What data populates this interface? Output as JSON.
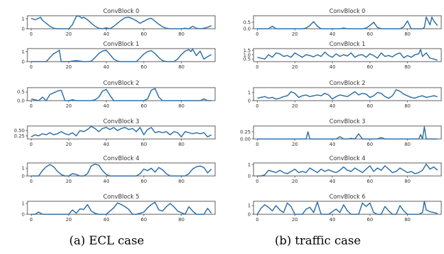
{
  "figure": {
    "caption_a": "(a) ECL case",
    "caption_b": "(b) traffic case"
  },
  "style": {
    "line_color": "#2b6fa8",
    "axis_color": "#333333",
    "text_color": "#333333"
  },
  "chart_data": [
    {
      "type": "line",
      "panel": "ECL",
      "title": "ConvBlock 0",
      "xticks": [
        0,
        20,
        40,
        60,
        80
      ],
      "yticks": [
        0,
        1
      ],
      "ylim": [
        0,
        1.3
      ],
      "xlim": [
        -2,
        98
      ],
      "x": [
        0,
        2,
        4,
        5,
        6,
        8,
        10,
        12,
        14,
        16,
        18,
        20,
        22,
        23,
        24,
        25,
        26,
        27,
        28,
        30,
        32,
        34,
        36,
        38,
        40,
        42,
        44,
        46,
        48,
        50,
        52,
        54,
        56,
        58,
        60,
        62,
        64,
        66,
        68,
        70,
        72,
        74,
        76,
        78,
        80,
        82,
        84,
        86,
        88,
        90,
        92,
        94,
        96
      ],
      "y": [
        1.05,
        0.9,
        1.05,
        1.15,
        0.85,
        0.55,
        0.25,
        0.05,
        0.0,
        0.0,
        0.0,
        0.0,
        0.4,
        0.85,
        1.2,
        1.3,
        1.2,
        1.05,
        1.15,
        0.9,
        0.55,
        0.25,
        0.05,
        0.0,
        0.1,
        0.0,
        0.25,
        0.55,
        0.85,
        1.1,
        1.15,
        1.0,
        0.8,
        0.55,
        0.75,
        0.95,
        1.05,
        0.75,
        0.45,
        0.2,
        0.05,
        0.0,
        0.0,
        0.0,
        0.0,
        0.05,
        0.0,
        0.25,
        0.05,
        0.0,
        0.05,
        0.15,
        0.3
      ]
    },
    {
      "type": "line",
      "panel": "ECL",
      "title": "ConvBlock 1",
      "xticks": [
        0,
        20,
        40,
        60,
        80
      ],
      "yticks": [
        0,
        1
      ],
      "ylim": [
        0,
        1.3
      ],
      "xlim": [
        -2,
        98
      ],
      "x": [
        0,
        2,
        4,
        6,
        8,
        10,
        12,
        14,
        15,
        16,
        18,
        20,
        22,
        24,
        26,
        28,
        30,
        32,
        34,
        36,
        38,
        40,
        42,
        44,
        46,
        48,
        50,
        52,
        54,
        56,
        58,
        60,
        62,
        64,
        66,
        68,
        70,
        72,
        74,
        76,
        78,
        80,
        82,
        84,
        85,
        86,
        88,
        90,
        92,
        94,
        96
      ],
      "y": [
        0.0,
        0.0,
        0.0,
        0.0,
        0.0,
        0.4,
        0.8,
        1.0,
        1.15,
        0.0,
        0.0,
        0.0,
        0.05,
        0.1,
        0.05,
        0.0,
        0.0,
        0.05,
        0.4,
        0.8,
        1.05,
        1.15,
        0.7,
        0.25,
        0.05,
        0.0,
        0.0,
        0.0,
        0.0,
        0.0,
        0.35,
        0.75,
        1.0,
        1.1,
        0.8,
        0.4,
        0.1,
        0.0,
        0.0,
        0.0,
        0.25,
        0.7,
        1.05,
        1.2,
        1.0,
        1.25,
        0.6,
        1.05,
        0.25,
        0.5,
        0.7
      ]
    },
    {
      "type": "line",
      "panel": "ECL",
      "title": "ConvBlock 2",
      "xticks": [
        0,
        20,
        40,
        60,
        80
      ],
      "yticks": [
        0.0,
        0.5
      ],
      "ylim": [
        0,
        0.75
      ],
      "xlim": [
        -2,
        98
      ],
      "x": [
        0,
        2,
        4,
        6,
        8,
        10,
        12,
        14,
        16,
        18,
        20,
        22,
        24,
        26,
        28,
        30,
        32,
        34,
        36,
        38,
        40,
        42,
        44,
        46,
        48,
        50,
        52,
        54,
        56,
        58,
        60,
        62,
        64,
        66,
        68,
        70,
        72,
        74,
        76,
        78,
        80,
        82,
        84,
        86,
        88,
        90,
        92,
        94,
        96
      ],
      "y": [
        0.1,
        0.05,
        0.0,
        0.2,
        0.0,
        0.35,
        0.45,
        0.55,
        0.6,
        0.0,
        0.0,
        0.05,
        0.0,
        0.0,
        0.0,
        0.0,
        0.0,
        0.05,
        0.2,
        0.55,
        0.65,
        0.3,
        0.0,
        0.0,
        0.0,
        0.0,
        0.0,
        0.0,
        0.0,
        0.0,
        0.0,
        0.1,
        0.6,
        0.7,
        0.2,
        0.0,
        0.0,
        0.0,
        0.0,
        0.0,
        0.0,
        0.0,
        0.0,
        0.0,
        0.0,
        0.0,
        0.1,
        0.0,
        0.0
      ]
    },
    {
      "type": "line",
      "panel": "ECL",
      "title": "ConvBlock 3",
      "xticks": [
        0,
        20,
        40,
        60,
        80
      ],
      "yticks": [
        0.25,
        0.5
      ],
      "ylim": [
        0.1,
        0.72
      ],
      "xlim": [
        -2,
        98
      ],
      "x": [
        0,
        2,
        4,
        6,
        8,
        10,
        12,
        14,
        16,
        18,
        20,
        22,
        24,
        26,
        28,
        30,
        32,
        34,
        36,
        38,
        40,
        42,
        44,
        46,
        48,
        50,
        52,
        54,
        56,
        58,
        60,
        62,
        64,
        66,
        68,
        70,
        72,
        74,
        76,
        78,
        80,
        82,
        84,
        86,
        88,
        90,
        92,
        94,
        96
      ],
      "y": [
        0.2,
        0.3,
        0.25,
        0.35,
        0.3,
        0.4,
        0.3,
        0.35,
        0.45,
        0.35,
        0.3,
        0.4,
        0.25,
        0.5,
        0.45,
        0.55,
        0.7,
        0.6,
        0.45,
        0.6,
        0.65,
        0.55,
        0.65,
        0.5,
        0.6,
        0.65,
        0.55,
        0.6,
        0.45,
        0.65,
        0.3,
        0.55,
        0.65,
        0.4,
        0.45,
        0.4,
        0.45,
        0.3,
        0.45,
        0.4,
        0.2,
        0.45,
        0.4,
        0.35,
        0.4,
        0.35,
        0.4,
        0.2,
        0.3
      ]
    },
    {
      "type": "line",
      "panel": "ECL",
      "title": "ConvBlock 4",
      "xticks": [
        0,
        20,
        40,
        60,
        80
      ],
      "yticks": [
        0,
        1
      ],
      "ylim": [
        0,
        1.7
      ],
      "xlim": [
        -2,
        98
      ],
      "x": [
        0,
        2,
        4,
        6,
        8,
        10,
        12,
        14,
        16,
        18,
        20,
        22,
        24,
        26,
        28,
        30,
        32,
        34,
        36,
        38,
        40,
        42,
        44,
        46,
        48,
        50,
        52,
        54,
        56,
        58,
        60,
        62,
        64,
        66,
        68,
        70,
        72,
        74,
        76,
        78,
        80,
        82,
        84,
        86,
        88,
        90,
        92,
        94,
        96
      ],
      "y": [
        0.0,
        0.0,
        0.0,
        0.7,
        1.2,
        1.5,
        1.2,
        0.6,
        0.2,
        0.0,
        0.0,
        0.3,
        0.2,
        0.0,
        0.0,
        0.3,
        1.3,
        1.55,
        1.4,
        0.7,
        0.2,
        0.0,
        0.0,
        0.0,
        0.0,
        0.0,
        0.0,
        0.0,
        0.0,
        0.3,
        0.9,
        0.7,
        1.0,
        0.5,
        1.1,
        0.8,
        0.3,
        0.0,
        0.0,
        0.0,
        0.0,
        0.0,
        0.3,
        0.9,
        1.2,
        1.3,
        1.1,
        0.4,
        0.9
      ]
    },
    {
      "type": "line",
      "panel": "ECL",
      "title": "ConvBlock 5",
      "xticks": [
        0,
        20,
        40,
        60,
        80
      ],
      "yticks": [
        0,
        1
      ],
      "ylim": [
        0,
        1.2
      ],
      "xlim": [
        -2,
        98
      ],
      "x": [
        0,
        2,
        4,
        6,
        8,
        10,
        12,
        14,
        16,
        18,
        20,
        22,
        24,
        26,
        28,
        30,
        32,
        34,
        36,
        38,
        40,
        42,
        44,
        46,
        48,
        50,
        52,
        54,
        56,
        58,
        60,
        62,
        64,
        66,
        68,
        70,
        72,
        74,
        76,
        78,
        80,
        82,
        84,
        86,
        88,
        90,
        92,
        94,
        96
      ],
      "y": [
        0.0,
        0.0,
        0.2,
        0.0,
        0.0,
        0.0,
        0.0,
        0.0,
        0.0,
        0.0,
        0.0,
        0.4,
        0.1,
        0.5,
        0.45,
        0.9,
        0.3,
        0.1,
        0.0,
        0.0,
        0.0,
        0.3,
        0.6,
        1.05,
        0.9,
        0.7,
        0.45,
        0.0,
        0.0,
        0.1,
        0.2,
        0.6,
        0.9,
        1.1,
        0.4,
        0.3,
        0.7,
        1.0,
        0.7,
        0.3,
        0.15,
        0.0,
        0.7,
        0.3,
        0.0,
        0.0,
        0.0,
        0.55,
        0.1
      ]
    },
    {
      "type": "line",
      "panel": "traffic",
      "title": "ConvBlock 0",
      "xticks": [
        0,
        20,
        40,
        60,
        80
      ],
      "yticks": [
        0.0,
        0.5
      ],
      "ylim": [
        0,
        1.0
      ],
      "xlim": [
        -2,
        98
      ],
      "x": [
        0,
        2,
        4,
        6,
        8,
        10,
        12,
        14,
        16,
        18,
        20,
        22,
        24,
        26,
        28,
        30,
        32,
        34,
        36,
        38,
        40,
        42,
        44,
        46,
        48,
        50,
        52,
        54,
        56,
        58,
        60,
        62,
        64,
        66,
        68,
        70,
        72,
        74,
        76,
        78,
        80,
        82,
        84,
        86,
        88,
        89,
        90,
        91,
        92,
        93,
        94,
        96
      ],
      "y": [
        0.0,
        0.0,
        0.0,
        0.0,
        0.2,
        0.0,
        0.0,
        0.0,
        0.0,
        0.0,
        0.0,
        0.0,
        0.0,
        0.05,
        0.25,
        0.55,
        0.2,
        0.0,
        0.0,
        0.0,
        0.0,
        0.0,
        0.0,
        0.05,
        0.0,
        0.0,
        0.0,
        0.0,
        0.0,
        0.05,
        0.25,
        0.5,
        0.1,
        0.0,
        0.0,
        0.0,
        0.0,
        0.0,
        0.0,
        0.15,
        0.6,
        0.0,
        0.0,
        0.0,
        0.0,
        0.1,
        0.9,
        0.6,
        0.3,
        0.9,
        0.6,
        0.25
      ]
    },
    {
      "type": "line",
      "panel": "traffic",
      "title": "ConvBlock 1",
      "xticks": [
        0,
        20,
        40,
        60,
        80
      ],
      "yticks": [
        0.5,
        1.0,
        1.5
      ],
      "ylim": [
        0.2,
        1.7
      ],
      "xlim": [
        -2,
        98
      ],
      "x": [
        0,
        2,
        4,
        6,
        8,
        10,
        12,
        14,
        16,
        18,
        20,
        22,
        24,
        26,
        28,
        30,
        32,
        34,
        36,
        38,
        40,
        42,
        44,
        46,
        48,
        50,
        52,
        54,
        56,
        58,
        60,
        62,
        64,
        66,
        68,
        70,
        72,
        74,
        76,
        78,
        80,
        82,
        84,
        86,
        87,
        88,
        90,
        92,
        94,
        96
      ],
      "y": [
        0.7,
        0.6,
        0.5,
        1.0,
        0.7,
        1.2,
        1.1,
        0.8,
        0.9,
        0.7,
        1.2,
        0.95,
        0.7,
        1.0,
        0.9,
        0.75,
        1.0,
        0.8,
        1.3,
        0.9,
        0.7,
        1.1,
        0.8,
        1.0,
        0.85,
        1.2,
        0.7,
        0.95,
        1.0,
        0.7,
        1.1,
        0.9,
        0.6,
        1.2,
        0.8,
        0.9,
        0.75,
        1.05,
        1.2,
        0.65,
        0.9,
        0.7,
        1.0,
        1.1,
        1.6,
        0.8,
        1.2,
        0.6,
        0.5,
        0.35
      ]
    },
    {
      "type": "line",
      "panel": "traffic",
      "title": "ConvBlock 2",
      "xticks": [
        0,
        20,
        40,
        60,
        80
      ],
      "yticks": [
        0,
        1
      ],
      "ylim": [
        0,
        1.6
      ],
      "xlim": [
        -2,
        98
      ],
      "x": [
        0,
        2,
        4,
        6,
        8,
        10,
        12,
        14,
        16,
        18,
        20,
        22,
        24,
        26,
        28,
        30,
        32,
        34,
        36,
        38,
        40,
        42,
        44,
        46,
        48,
        50,
        52,
        54,
        56,
        58,
        60,
        62,
        64,
        66,
        68,
        70,
        72,
        74,
        76,
        78,
        80,
        82,
        84,
        86,
        88,
        90,
        92,
        94,
        96
      ],
      "y": [
        0.3,
        0.4,
        0.5,
        0.3,
        0.4,
        0.2,
        0.3,
        0.5,
        0.6,
        1.1,
        0.9,
        0.4,
        0.6,
        0.7,
        0.5,
        0.6,
        0.7,
        0.6,
        0.9,
        0.7,
        0.2,
        0.5,
        0.7,
        0.6,
        0.5,
        0.8,
        1.1,
        0.7,
        0.9,
        0.8,
        0.4,
        0.6,
        1.0,
        0.9,
        0.5,
        0.3,
        0.6,
        1.35,
        1.15,
        0.8,
        0.6,
        0.4,
        0.3,
        0.5,
        0.6,
        0.4,
        0.5,
        0.6,
        0.5
      ]
    },
    {
      "type": "line",
      "panel": "traffic",
      "title": "ConvBlock 3",
      "xticks": [
        0,
        20,
        40,
        60,
        80
      ],
      "yticks": [
        0.0,
        0.25
      ],
      "ylim": [
        0,
        0.45
      ],
      "xlim": [
        -2,
        98
      ],
      "x": [
        0,
        2,
        4,
        6,
        8,
        10,
        12,
        14,
        16,
        18,
        20,
        22,
        24,
        26,
        27,
        28,
        30,
        32,
        34,
        36,
        38,
        40,
        42,
        44,
        46,
        48,
        50,
        52,
        54,
        56,
        58,
        60,
        62,
        64,
        66,
        68,
        70,
        72,
        74,
        76,
        78,
        80,
        82,
        84,
        86,
        87,
        88,
        89,
        90,
        92,
        94,
        96
      ],
      "y": [
        0,
        0,
        0,
        0,
        0,
        0,
        0,
        0,
        0,
        0,
        0,
        0,
        0,
        0,
        0.25,
        0,
        0,
        0,
        0,
        0,
        0,
        0,
        0,
        0.08,
        0,
        0,
        0.02,
        0,
        0.18,
        0,
        0,
        0,
        0,
        0,
        0.05,
        0,
        0,
        0,
        0,
        0,
        0,
        0,
        0,
        0,
        0,
        0.15,
        0,
        0.42,
        0,
        0,
        0,
        0
      ]
    },
    {
      "type": "line",
      "panel": "traffic",
      "title": "ConvBlock 4",
      "xticks": [
        0,
        20,
        40,
        60,
        80
      ],
      "yticks": [
        0,
        1
      ],
      "ylim": [
        0,
        1.15
      ],
      "xlim": [
        -2,
        98
      ],
      "x": [
        0,
        2,
        4,
        6,
        8,
        10,
        12,
        14,
        16,
        18,
        20,
        22,
        24,
        26,
        28,
        30,
        32,
        34,
        36,
        38,
        40,
        42,
        44,
        46,
        48,
        50,
        52,
        54,
        56,
        58,
        60,
        62,
        64,
        66,
        68,
        70,
        72,
        74,
        76,
        78,
        80,
        82,
        84,
        86,
        88,
        90,
        92,
        94,
        96
      ],
      "y": [
        0.0,
        0.0,
        0.1,
        0.5,
        0.4,
        0.3,
        0.5,
        0.3,
        0.2,
        0.4,
        0.6,
        0.3,
        0.4,
        0.3,
        0.7,
        0.5,
        0.3,
        0.6,
        0.4,
        0.55,
        0.4,
        0.3,
        0.5,
        0.8,
        0.5,
        0.4,
        0.7,
        0.5,
        0.3,
        0.6,
        0.9,
        0.4,
        0.7,
        0.5,
        0.9,
        0.6,
        0.3,
        0.4,
        0.7,
        0.5,
        0.3,
        0.4,
        0.2,
        0.3,
        0.5,
        1.05,
        0.6,
        0.8,
        0.5
      ]
    },
    {
      "type": "line",
      "panel": "traffic",
      "title": "ConvBlock 6",
      "xticks": [
        0,
        20,
        40,
        60,
        80
      ],
      "yticks": [
        0,
        1
      ],
      "ylim": [
        0,
        1.5
      ],
      "xlim": [
        -2,
        98
      ],
      "x": [
        0,
        2,
        4,
        6,
        8,
        10,
        12,
        14,
        16,
        18,
        20,
        22,
        24,
        26,
        28,
        30,
        32,
        34,
        36,
        38,
        40,
        42,
        44,
        46,
        48,
        50,
        52,
        54,
        56,
        58,
        60,
        62,
        64,
        66,
        68,
        70,
        72,
        74,
        76,
        78,
        80,
        82,
        84,
        86,
        88,
        89,
        90,
        92,
        94,
        96
      ],
      "y": [
        0.0,
        0.7,
        1.1,
        0.8,
        0.4,
        1.0,
        0.5,
        0.2,
        1.3,
        0.9,
        0.0,
        0.0,
        0.0,
        0.6,
        0.8,
        0.2,
        1.4,
        0.0,
        0.0,
        0.0,
        0.3,
        0.6,
        0.2,
        1.1,
        0.4,
        0.0,
        0.0,
        0.0,
        1.3,
        0.9,
        1.3,
        0.2,
        0.0,
        0.0,
        0.9,
        0.4,
        0.0,
        0.0,
        1.0,
        0.4,
        0.0,
        0.0,
        0.0,
        0.0,
        0.2,
        1.5,
        0.5,
        0.3,
        0.2,
        0.1
      ]
    }
  ]
}
